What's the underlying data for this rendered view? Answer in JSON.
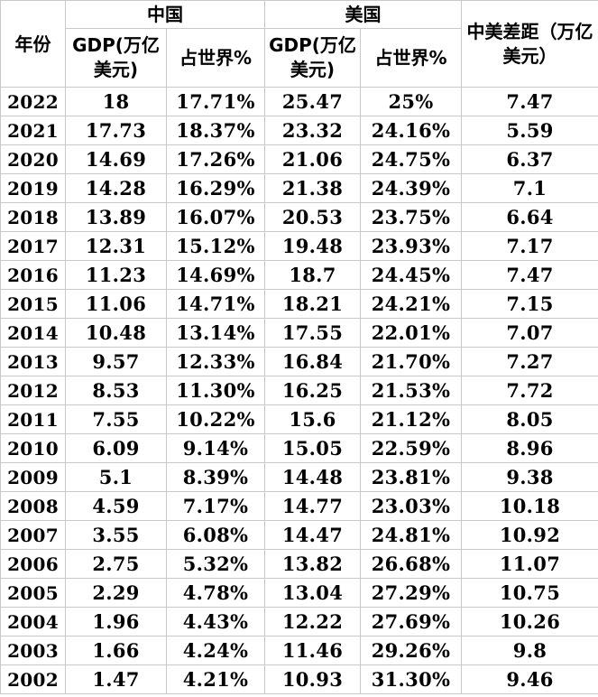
{
  "table": {
    "header": {
      "year": "年份",
      "china": "中国",
      "usa": "美国",
      "china_gdp": "GDP(万亿美元)",
      "china_share": "占世界%",
      "usa_gdp": "GDP(万亿美元)",
      "usa_share": "占世界%",
      "gap": "中美差距（万亿美元）"
    },
    "rows": [
      [
        "2022",
        "18",
        "17.71%",
        "25.47",
        "25%",
        "7.47"
      ],
      [
        "2021",
        "17.73",
        "18.37%",
        "23.32",
        "24.16%",
        "5.59"
      ],
      [
        "2020",
        "14.69",
        "17.26%",
        "21.06",
        "24.75%",
        "6.37"
      ],
      [
        "2019",
        "14.28",
        "16.29%",
        "21.38",
        "24.39%",
        "7.1"
      ],
      [
        "2018",
        "13.89",
        "16.07%",
        "20.53",
        "23.75%",
        "6.64"
      ],
      [
        "2017",
        "12.31",
        "15.12%",
        "19.48",
        "23.93%",
        "7.17"
      ],
      [
        "2016",
        "11.23",
        "14.69%",
        "18.7",
        "24.45%",
        "7.47"
      ],
      [
        "2015",
        "11.06",
        "14.71%",
        "18.21",
        "24.21%",
        "7.15"
      ],
      [
        "2014",
        "10.48",
        "13.14%",
        "17.55",
        "22.01%",
        "7.07"
      ],
      [
        "2013",
        "9.57",
        "12.33%",
        "16.84",
        "21.70%",
        "7.27"
      ],
      [
        "2012",
        "8.53",
        "11.30%",
        "16.25",
        "21.53%",
        "7.72"
      ],
      [
        "2011",
        "7.55",
        "10.22%",
        "15.6",
        "21.12%",
        "8.05"
      ],
      [
        "2010",
        "6.09",
        "9.14%",
        "15.05",
        "22.59%",
        "8.96"
      ],
      [
        "2009",
        "5.1",
        "8.39%",
        "14.48",
        "23.81%",
        "9.38"
      ],
      [
        "2008",
        "4.59",
        "7.17%",
        "14.77",
        "23.03%",
        "10.18"
      ],
      [
        "2007",
        "3.55",
        "6.08%",
        "14.47",
        "24.81%",
        "10.92"
      ],
      [
        "2006",
        "2.75",
        "5.32%",
        "13.82",
        "26.68%",
        "11.07"
      ],
      [
        "2005",
        "2.29",
        "4.78%",
        "13.04",
        "27.29%",
        "10.75"
      ],
      [
        "2004",
        "1.96",
        "4.43%",
        "12.22",
        "27.69%",
        "10.26"
      ],
      [
        "2003",
        "1.66",
        "4.24%",
        "11.46",
        "29.26%",
        "9.8"
      ],
      [
        "2002",
        "1.47",
        "4.21%",
        "10.93",
        "31.30%",
        "9.46"
      ]
    ]
  }
}
